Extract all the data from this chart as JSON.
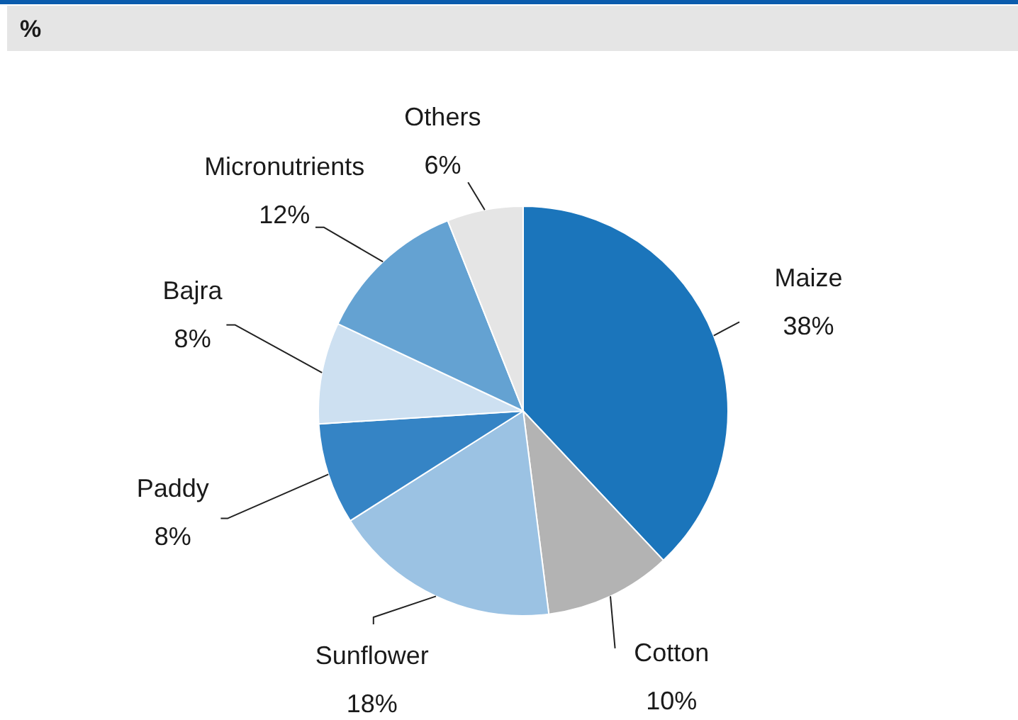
{
  "chart_data": {
    "type": "pie",
    "title": "%",
    "categories": [
      "Maize",
      "Cotton",
      "Sunflower",
      "Paddy",
      "Bajra",
      "Micronutrients",
      "Others"
    ],
    "values": [
      38,
      10,
      18,
      8,
      8,
      12,
      6
    ],
    "value_labels": [
      "38%",
      "10%",
      "18%",
      "8%",
      "8%",
      "12%",
      "6%"
    ],
    "colors": [
      "#1b75bb",
      "#b3b3b3",
      "#9bc2e3",
      "#3584c5",
      "#cde0f1",
      "#64a2d2",
      "#e5e5e5"
    ]
  }
}
